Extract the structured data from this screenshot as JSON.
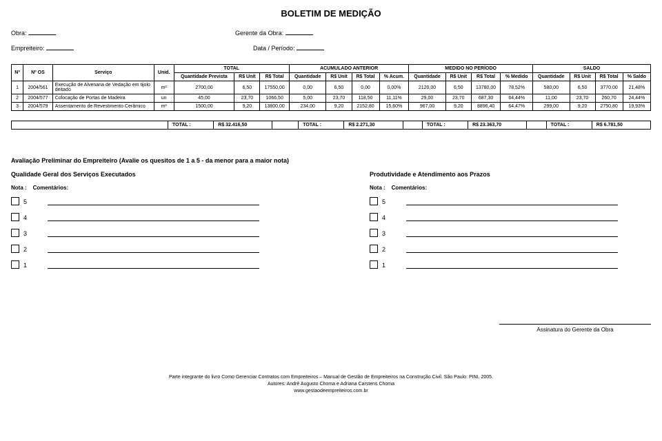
{
  "title": "BOLETIM DE MEDIÇÃO",
  "header": {
    "obra_label": "Obra:",
    "gerente_label": "Gerente da Obra:",
    "empreiteiro_label": "Empreiteiro:",
    "periodo_label": "Data / Período:"
  },
  "table": {
    "groups": [
      "TOTAL",
      "ACUMULADO ANTERIOR",
      "MEDIDO NO PERÍODO",
      "SALDO"
    ],
    "cols": [
      "Nº",
      "Nº OS",
      "Serviço",
      "Unid.",
      "Quantidade Prevista",
      "R$ Unit",
      "R$ Total",
      "Quantidade",
      "R$ Unit",
      "R$ Total",
      "% Acum.",
      "Quantidade",
      "R$ Unit",
      "R$ Total",
      "% Medido",
      "Quantidade",
      "R$ Unit",
      "R$ Total",
      "% Saldo"
    ],
    "rows": [
      [
        "1",
        "2004/561",
        "Execução de Alvenaria de Vedação em tijolo deitado",
        "m²",
        "2700,00",
        "6,50",
        "17550,00",
        "0,00",
        "6,50",
        "0,00",
        "0,00%",
        "2120,00",
        "6,50",
        "13780,00",
        "78,52%",
        "580,00",
        "6,50",
        "3770,00",
        "21,48%"
      ],
      [
        "2",
        "2004/577",
        "Colocação de Portas de Madeira",
        "un",
        "45,00",
        "23,70",
        "1066,50",
        "5,00",
        "23,70",
        "118,50",
        "11,11%",
        "29,00",
        "23,70",
        "687,30",
        "64,44%",
        "11,00",
        "23,70",
        "260,70",
        "24,44%"
      ],
      [
        "3",
        "2004/579",
        "Assentamento de Revestimento Cerâmico",
        "m²",
        "1500,00",
        "9,20",
        "13800,00",
        "234,00",
        "9,20",
        "2152,80",
        "15,60%",
        "967,00",
        "9,20",
        "8896,40",
        "64,47%",
        "299,00",
        "9,20",
        "2750,80",
        "19,93%"
      ]
    ]
  },
  "totals": {
    "label": "TOTAL :",
    "v1": "R$ 32.416,50",
    "v2": "R$ 2.271,30",
    "v3": "R$ 23.363,70",
    "v4": "R$ 6.781,50"
  },
  "evaluation": {
    "title": "Avaliação Preliminar do Empreiteiro (Avalie os quesitos de 1 a 5 - da menor para a maior nota)",
    "left_title": "Qualidade Geral dos Serviços Executados",
    "right_title": "Produtividade e Atendimento aos Prazos",
    "nota_label": "Nota :",
    "coment_label": "Comentários:",
    "scores": [
      "5",
      "4",
      "3",
      "2",
      "1"
    ]
  },
  "signature": "Assinatura do Gerente da Obra",
  "footer": {
    "l1": "Parte integrante do livro Como Gerenciar Contratos com Empreiteiros – Manual de Gestão de Empreiteiros na Construção Civil. São Paulo: PINI, 2005.",
    "l2": "Autores: André Augusto Choma e Adriana Carstens Choma",
    "l3": "www.gestaodeempreiteiros.com.br"
  }
}
